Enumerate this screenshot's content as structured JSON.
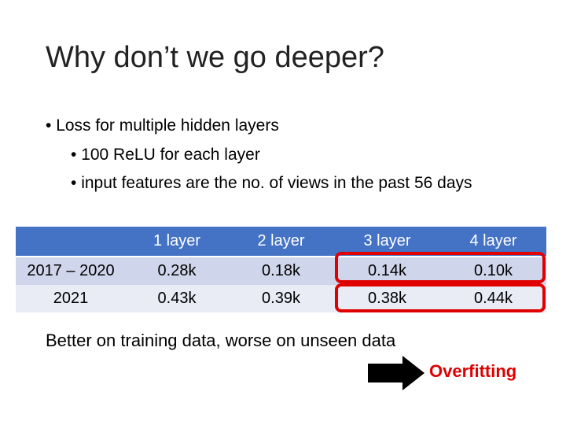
{
  "title": "Why don’t we go deeper?",
  "bullets": [
    {
      "text": "Loss for multiple hidden layers",
      "children": [
        "100 ReLU for each layer",
        "input features are the no. of views in the past 56 days"
      ]
    }
  ],
  "table": {
    "header": [
      "",
      "1 layer",
      "2 layer",
      "3 layer",
      "4 layer"
    ],
    "rows": [
      [
        "2017 – 2020",
        "0.28k",
        "0.18k",
        "0.14k",
        "0.10k"
      ],
      [
        "2021",
        "0.43k",
        "0.39k",
        "0.38k",
        "0.44k"
      ]
    ]
  },
  "caption": "Better on training data, worse on unseen data",
  "conclusion": "Overfitting"
}
